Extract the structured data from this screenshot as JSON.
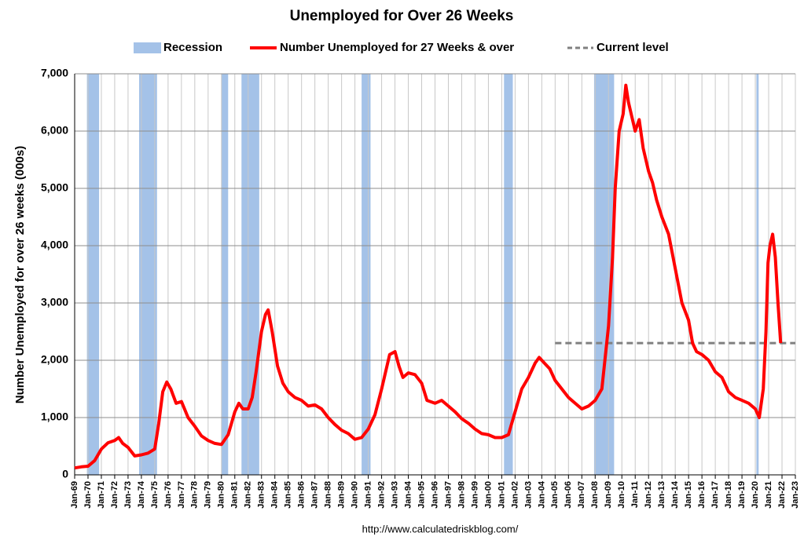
{
  "chart_data": {
    "type": "line",
    "title": "Unemployed for Over 26 Weeks",
    "ylabel": "Number Unemployed for over 26 weeks (000s)",
    "source": "http://www.calculatedriskblog.com/",
    "xlim": [
      1969,
      2023
    ],
    "ylim": [
      0,
      7000
    ],
    "yticks": [
      0,
      {
        "value": 1000,
        "label": "1,000"
      },
      {
        "value": 2000,
        "label": "2,000"
      },
      {
        "value": 3000,
        "label": "3,000"
      },
      {
        "value": 4000,
        "label": "4,000"
      },
      {
        "value": 5000,
        "label": "5,000"
      },
      {
        "value": 6000,
        "label": "6,000"
      },
      {
        "value": 7000,
        "label": "7,000"
      }
    ],
    "xticks": [
      {
        "value": 1969,
        "label": "Jan-69"
      },
      {
        "value": 1970,
        "label": "Jan-70"
      },
      {
        "value": 1971,
        "label": "Jan-71"
      },
      {
        "value": 1972,
        "label": "Jan-72"
      },
      {
        "value": 1973,
        "label": "Jan-73"
      },
      {
        "value": 1974,
        "label": "Jan-74"
      },
      {
        "value": 1975,
        "label": "Jan-75"
      },
      {
        "value": 1976,
        "label": "Jan-76"
      },
      {
        "value": 1977,
        "label": "Jan-77"
      },
      {
        "value": 1978,
        "label": "Jan-78"
      },
      {
        "value": 1979,
        "label": "Jan-79"
      },
      {
        "value": 1980,
        "label": "Jan-80"
      },
      {
        "value": 1981,
        "label": "Jan-81"
      },
      {
        "value": 1982,
        "label": "Jan-82"
      },
      {
        "value": 1983,
        "label": "Jan-83"
      },
      {
        "value": 1984,
        "label": "Jan-84"
      },
      {
        "value": 1985,
        "label": "Jan-85"
      },
      {
        "value": 1986,
        "label": "Jan-86"
      },
      {
        "value": 1987,
        "label": "Jan-87"
      },
      {
        "value": 1988,
        "label": "Jan-88"
      },
      {
        "value": 1989,
        "label": "Jan-89"
      },
      {
        "value": 1990,
        "label": "Jan-90"
      },
      {
        "value": 1991,
        "label": "Jan-91"
      },
      {
        "value": 1992,
        "label": "Jan-92"
      },
      {
        "value": 1993,
        "label": "Jan-93"
      },
      {
        "value": 1994,
        "label": "Jan-94"
      },
      {
        "value": 1995,
        "label": "Jan-95"
      },
      {
        "value": 1996,
        "label": "Jan-96"
      },
      {
        "value": 1997,
        "label": "Jan-97"
      },
      {
        "value": 1998,
        "label": "Jan-98"
      },
      {
        "value": 1999,
        "label": "Jan-99"
      },
      {
        "value": 2000,
        "label": "Jan-00"
      },
      {
        "value": 2001,
        "label": "Jan-01"
      },
      {
        "value": 2002,
        "label": "Jan-02"
      },
      {
        "value": 2003,
        "label": "Jan-03"
      },
      {
        "value": 2004,
        "label": "Jan-04"
      },
      {
        "value": 2005,
        "label": "Jan-05"
      },
      {
        "value": 2006,
        "label": "Jan-06"
      },
      {
        "value": 2007,
        "label": "Jan-07"
      },
      {
        "value": 2008,
        "label": "Jan-08"
      },
      {
        "value": 2009,
        "label": "Jan-09"
      },
      {
        "value": 2010,
        "label": "Jan-10"
      },
      {
        "value": 2011,
        "label": "Jan-11"
      },
      {
        "value": 2012,
        "label": "Jan-12"
      },
      {
        "value": 2013,
        "label": "Jan-13"
      },
      {
        "value": 2014,
        "label": "Jan-14"
      },
      {
        "value": 2015,
        "label": "Jan-15"
      },
      {
        "value": 2016,
        "label": "Jan-16"
      },
      {
        "value": 2017,
        "label": "Jan-17"
      },
      {
        "value": 2018,
        "label": "Jan-18"
      },
      {
        "value": 2019,
        "label": "Jan-19"
      },
      {
        "value": 2020,
        "label": "Jan-20"
      },
      {
        "value": 2021,
        "label": "Jan-21"
      },
      {
        "value": 2022,
        "label": "Jan-22"
      },
      {
        "value": 2023,
        "label": "Jan-23"
      }
    ],
    "grid": true,
    "recessions": {
      "name": "Recession",
      "color": "#a4c2e8",
      "ranges": [
        [
          1969.92,
          1970.83
        ],
        [
          1973.83,
          1975.17
        ],
        [
          1980.0,
          1980.5
        ],
        [
          1981.5,
          1982.83
        ],
        [
          1990.5,
          1991.17
        ],
        [
          2001.17,
          2001.83
        ],
        [
          2007.92,
          2009.42
        ],
        [
          2020.08,
          2020.25
        ]
      ]
    },
    "reference_line": {
      "name": "Current level",
      "color": "#808080",
      "value": 2300,
      "x_start": 2005
    },
    "x": [
      1969.0,
      1969.5,
      1970.0,
      1970.5,
      1971.0,
      1971.5,
      1972.0,
      1972.3,
      1972.6,
      1973.0,
      1973.5,
      1974.0,
      1974.5,
      1975.0,
      1975.3,
      1975.6,
      1975.9,
      1976.2,
      1976.6,
      1977.0,
      1977.5,
      1978.0,
      1978.5,
      1979.0,
      1979.5,
      1980.0,
      1980.5,
      1981.0,
      1981.3,
      1981.6,
      1982.0,
      1982.3,
      1982.6,
      1983.0,
      1983.3,
      1983.5,
      1983.8,
      1984.2,
      1984.6,
      1985.0,
      1985.5,
      1986.0,
      1986.5,
      1987.0,
      1987.5,
      1988.0,
      1988.5,
      1989.0,
      1989.5,
      1990.0,
      1990.5,
      1991.0,
      1991.5,
      1992.0,
      1992.3,
      1992.6,
      1993.0,
      1993.3,
      1993.6,
      1994.0,
      1994.5,
      1995.0,
      1995.4,
      1996.0,
      1996.5,
      1997.0,
      1997.5,
      1998.0,
      1998.5,
      1999.0,
      1999.5,
      2000.0,
      2000.5,
      2001.0,
      2001.5,
      2002.0,
      2002.5,
      2003.0,
      2003.5,
      2003.8,
      2004.2,
      2004.6,
      2005.0,
      2005.5,
      2006.0,
      2006.5,
      2007.0,
      2007.5,
      2008.0,
      2008.5,
      2009.0,
      2009.3,
      2009.5,
      2009.8,
      2010.1,
      2010.3,
      2010.5,
      2010.8,
      2011.0,
      2011.3,
      2011.6,
      2012.0,
      2012.3,
      2012.6,
      2013.0,
      2013.5,
      2014.0,
      2014.5,
      2015.0,
      2015.3,
      2015.6,
      2016.0,
      2016.5,
      2017.0,
      2017.5,
      2018.0,
      2018.5,
      2019.0,
      2019.5,
      2020.0,
      2020.3,
      2020.6,
      2020.8,
      2020.95,
      2021.1,
      2021.3,
      2021.5,
      2021.7,
      2021.9
    ],
    "series": [
      {
        "name": "Number Unemployed for 27 Weeks & over",
        "color": "#ff0000",
        "values": [
          120,
          140,
          150,
          250,
          450,
          560,
          600,
          650,
          550,
          480,
          330,
          350,
          380,
          450,
          900,
          1450,
          1620,
          1500,
          1250,
          1280,
          1000,
          850,
          680,
          600,
          550,
          530,
          700,
          1100,
          1250,
          1150,
          1150,
          1350,
          1800,
          2500,
          2800,
          2880,
          2500,
          1900,
          1600,
          1450,
          1350,
          1300,
          1200,
          1220,
          1150,
          1000,
          880,
          780,
          720,
          620,
          650,
          800,
          1050,
          1500,
          1800,
          2100,
          2150,
          1900,
          1700,
          1780,
          1750,
          1600,
          1300,
          1250,
          1300,
          1200,
          1100,
          980,
          900,
          800,
          720,
          700,
          650,
          650,
          700,
          1100,
          1500,
          1700,
          1950,
          2050,
          1950,
          1850,
          1650,
          1500,
          1350,
          1250,
          1150,
          1200,
          1300,
          1500,
          2600,
          3800,
          5000,
          6000,
          6300,
          6800,
          6500,
          6200,
          6000,
          6200,
          5700,
          5300,
          5100,
          4800,
          4500,
          4200,
          3600,
          3000,
          2700,
          2300,
          2150,
          2100,
          2000,
          1800,
          1700,
          1450,
          1350,
          1300,
          1250,
          1150,
          1000,
          1500,
          2500,
          3700,
          4000,
          4200,
          3800,
          3000,
          2300
        ]
      }
    ]
  }
}
